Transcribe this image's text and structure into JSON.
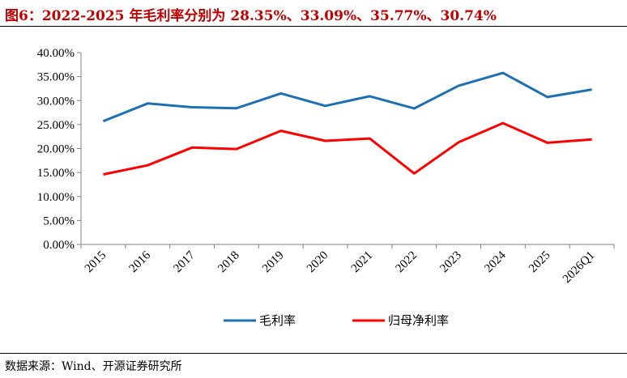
{
  "header": {
    "title": "图6：2022-2025 年毛利率分别为 28.35%、33.09%、35.77%、30.74%"
  },
  "footer": {
    "source": "数据来源：Wind、开源证券研究所"
  },
  "chart_data": {
    "type": "line",
    "title": "",
    "xlabel": "",
    "ylabel": "",
    "categories": [
      "2015",
      "2016",
      "2017",
      "2018",
      "2019",
      "2020",
      "2021",
      "2022",
      "2023",
      "2024",
      "2025",
      "2026Q1"
    ],
    "ylim": [
      0,
      40
    ],
    "yticks": [
      "0.00%",
      "5.00%",
      "10.00%",
      "15.00%",
      "20.00%",
      "25.00%",
      "30.00%",
      "35.00%",
      "40.00%"
    ],
    "grid": false,
    "legend_position": "bottom",
    "series": [
      {
        "name": "毛利率",
        "color": "#1f6fb4",
        "values": [
          25.7,
          29.4,
          28.6,
          28.4,
          31.5,
          28.9,
          30.9,
          28.35,
          33.09,
          35.77,
          30.74,
          32.3
        ]
      },
      {
        "name": "归母净利率",
        "color": "#ff0000",
        "values": [
          14.6,
          16.5,
          20.2,
          19.9,
          23.7,
          21.6,
          22.1,
          14.8,
          21.3,
          25.3,
          21.2,
          21.9
        ]
      }
    ]
  }
}
